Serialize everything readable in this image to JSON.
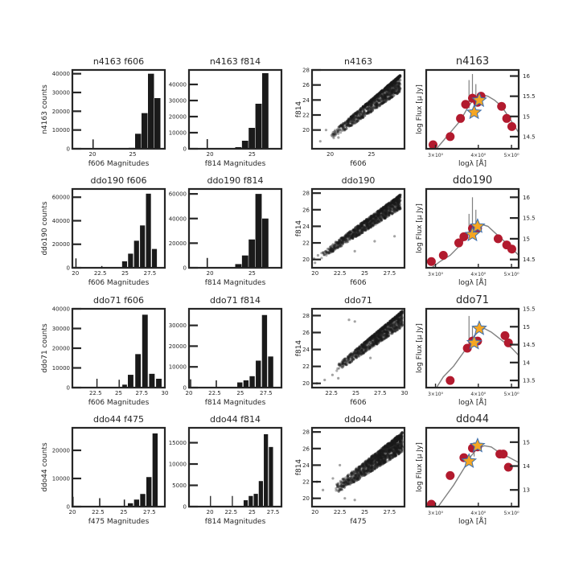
{
  "figure": {
    "background": "#ffffff",
    "frame_color": "#262626"
  },
  "colors": {
    "hist": "#1a1a1a",
    "scatter": "#1a1a1a",
    "sed_model": "#808080",
    "sed_photometry": "#b21a2e",
    "sed_star_fill": "#f5a623",
    "sed_star_edge": "#3b6fb0"
  },
  "chart_data": [
    {
      "id": "n4163_f606",
      "type": "bar",
      "title": "n4163 f606",
      "xlabel": "f606 Magnitudes",
      "ylabel": "n4163 counts",
      "xlim": [
        17.5,
        29
      ],
      "ylim": [
        0,
        42000
      ],
      "xticks": [
        20,
        25
      ],
      "yticks": [
        0,
        10000,
        20000,
        30000,
        40000
      ],
      "bins": [
        {
          "x": 20.0,
          "w": 0.15,
          "y": 5000
        },
        {
          "x": 24.5,
          "w": 0.75,
          "y": 500
        },
        {
          "x": 25.3,
          "w": 0.75,
          "y": 8000
        },
        {
          "x": 26.1,
          "w": 0.75,
          "y": 19000
        },
        {
          "x": 26.9,
          "w": 0.75,
          "y": 40000
        },
        {
          "x": 27.7,
          "w": 0.75,
          "y": 27000
        }
      ]
    },
    {
      "id": "n4163_f814",
      "type": "bar",
      "title": "n4163 f814",
      "xlabel": "f814 Magnitudes",
      "ylabel": "",
      "xlim": [
        17.5,
        28.5
      ],
      "ylim": [
        0,
        49000
      ],
      "xticks": [
        20,
        25
      ],
      "yticks": [
        0,
        10000,
        20000,
        30000,
        40000
      ],
      "bins": [
        {
          "x": 19.6,
          "w": 0.15,
          "y": 6000
        },
        {
          "x": 23.0,
          "w": 0.75,
          "y": 1000
        },
        {
          "x": 23.8,
          "w": 0.75,
          "y": 5000
        },
        {
          "x": 24.6,
          "w": 0.75,
          "y": 13000
        },
        {
          "x": 25.4,
          "w": 0.75,
          "y": 28000
        },
        {
          "x": 26.2,
          "w": 0.75,
          "y": 47000
        }
      ]
    },
    {
      "id": "n4163_cmd",
      "type": "scatter",
      "title": "n4163",
      "xlabel": "f606",
      "ylabel": "f814",
      "xlim": [
        17.8,
        29
      ],
      "ylim": [
        17.5,
        28
      ],
      "xticks": [
        20,
        25
      ],
      "yticks": [
        20,
        22,
        24,
        26,
        28
      ],
      "band": {
        "x0": 20.0,
        "x1": 28.5,
        "y0": 19.2,
        "y1": 27.1,
        "up": 0.25,
        "down": 2.0,
        "n": 1200
      },
      "outliers": [
        [
          18.8,
          18.5
        ],
        [
          19.5,
          20.0
        ],
        [
          21.0,
          19.0
        ],
        [
          22.5,
          20.6
        ],
        [
          24.0,
          22.0
        ]
      ]
    },
    {
      "id": "n4163_sed",
      "type": "line",
      "title": "n4163",
      "xlabel": "logλ [Å]",
      "ylabel": "log Flux  [µ Jy]",
      "xlim": [
        3.45,
        3.72
      ],
      "ylim": [
        14.2,
        16.15
      ],
      "logx_ticks": [
        [
          3.4771,
          "3×10⁰"
        ],
        [
          3.6021,
          "4×10⁰"
        ],
        [
          3.699,
          "5×10⁰"
        ]
      ],
      "yticks": [
        14.5,
        15.0,
        15.5,
        16.0
      ],
      "model": [
        [
          3.45,
          13.9
        ],
        [
          3.49,
          14.3
        ],
        [
          3.52,
          14.6
        ],
        [
          3.55,
          14.9
        ],
        [
          3.57,
          15.2
        ],
        [
          3.59,
          15.45
        ],
        [
          3.61,
          15.55
        ],
        [
          3.63,
          15.5
        ],
        [
          3.65,
          15.4
        ],
        [
          3.67,
          15.25
        ],
        [
          3.69,
          15.0
        ],
        [
          3.72,
          14.6
        ]
      ],
      "spikes": [
        [
          3.575,
          15.9
        ],
        [
          3.585,
          16.05
        ],
        [
          3.595,
          15.8
        ]
      ],
      "photometry": [
        [
          3.47,
          14.3
        ],
        [
          3.52,
          14.5
        ],
        [
          3.55,
          14.95
        ],
        [
          3.565,
          15.3
        ],
        [
          3.585,
          15.45
        ],
        [
          3.6,
          15.35
        ],
        [
          3.61,
          15.5
        ],
        [
          3.67,
          15.25
        ],
        [
          3.685,
          14.95
        ],
        [
          3.7,
          14.75
        ]
      ],
      "stars": [
        [
          3.59,
          15.1
        ],
        [
          3.605,
          15.4
        ]
      ]
    },
    {
      "id": "ddo190_f606",
      "type": "bar",
      "title": "ddo190 f606",
      "xlabel": "f606 Magnitudes",
      "ylabel": "ddo190 counts",
      "xlim": [
        19.7,
        29
      ],
      "ylim": [
        0,
        67000
      ],
      "xticks": [
        20.0,
        22.5,
        25.0,
        27.5
      ],
      "yticks": [
        0,
        20000,
        40000,
        60000
      ],
      "bins": [
        {
          "x": 20.0,
          "w": 0.12,
          "y": 8000
        },
        {
          "x": 22.6,
          "w": 0.12,
          "y": 1500
        },
        {
          "x": 24.7,
          "w": 0.5,
          "y": 5500
        },
        {
          "x": 25.3,
          "w": 0.5,
          "y": 12000
        },
        {
          "x": 25.9,
          "w": 0.5,
          "y": 23000
        },
        {
          "x": 26.5,
          "w": 0.5,
          "y": 36000
        },
        {
          "x": 27.1,
          "w": 0.5,
          "y": 63000
        },
        {
          "x": 27.7,
          "w": 0.5,
          "y": 16000
        }
      ]
    },
    {
      "id": "ddo190_f814",
      "type": "bar",
      "title": "ddo190 f814",
      "xlabel": "f814 Magnitudes",
      "ylabel": "",
      "xlim": [
        17.5,
        28.5
      ],
      "ylim": [
        0,
        64000
      ],
      "xticks": [
        20,
        25
      ],
      "yticks": [
        0,
        20000,
        40000,
        60000
      ],
      "bins": [
        {
          "x": 19.6,
          "w": 0.15,
          "y": 8000
        },
        {
          "x": 23.0,
          "w": 0.75,
          "y": 3000
        },
        {
          "x": 23.8,
          "w": 0.75,
          "y": 10000
        },
        {
          "x": 24.6,
          "w": 0.75,
          "y": 23000
        },
        {
          "x": 25.4,
          "w": 0.75,
          "y": 60000
        },
        {
          "x": 26.2,
          "w": 0.75,
          "y": 40000
        }
      ]
    },
    {
      "id": "ddo190_cmd",
      "type": "scatter",
      "title": "ddo190",
      "xlabel": "f606",
      "ylabel": "f814",
      "xlim": [
        19.7,
        29
      ],
      "ylim": [
        19,
        28.5
      ],
      "xticks": [
        20.0,
        22.5,
        25.0,
        27.5
      ],
      "yticks": [
        20,
        22,
        24,
        26,
        28
      ],
      "band": {
        "x0": 20.5,
        "x1": 28.6,
        "y0": 20.4,
        "y1": 27.5,
        "up": 0.35,
        "down": 1.4,
        "n": 1200
      },
      "outliers": [
        [
          19.9,
          20.1
        ],
        [
          20.0,
          19.6
        ],
        [
          20.3,
          20.5
        ],
        [
          24.0,
          21.0
        ],
        [
          26.0,
          22.2
        ],
        [
          28.0,
          22.8
        ]
      ]
    },
    {
      "id": "ddo190_sed",
      "type": "line",
      "title": "ddo190",
      "xlabel": "logλ [Å]",
      "ylabel": "log Flux  [µ Jy]",
      "xlim": [
        3.45,
        3.72
      ],
      "ylim": [
        14.3,
        16.2
      ],
      "logx_ticks": [
        [
          3.4771,
          "3×10⁰"
        ],
        [
          3.6021,
          "4×10⁰"
        ],
        [
          3.699,
          "5×10⁰"
        ]
      ],
      "yticks": [
        14.5,
        15.0,
        15.5,
        16.0
      ],
      "model": [
        [
          3.45,
          14.2
        ],
        [
          3.49,
          14.45
        ],
        [
          3.52,
          14.6
        ],
        [
          3.55,
          14.85
        ],
        [
          3.57,
          15.1
        ],
        [
          3.59,
          15.3
        ],
        [
          3.61,
          15.35
        ],
        [
          3.63,
          15.3
        ],
        [
          3.65,
          15.15
        ],
        [
          3.67,
          15.0
        ],
        [
          3.69,
          14.85
        ],
        [
          3.72,
          14.6
        ]
      ],
      "spikes": [
        [
          3.575,
          15.6
        ],
        [
          3.585,
          16.0
        ],
        [
          3.595,
          15.7
        ]
      ],
      "photometry": [
        [
          3.465,
          14.45
        ],
        [
          3.5,
          14.6
        ],
        [
          3.545,
          14.9
        ],
        [
          3.56,
          15.05
        ],
        [
          3.585,
          15.25
        ],
        [
          3.6,
          15.25
        ],
        [
          3.66,
          15.0
        ],
        [
          3.685,
          14.85
        ],
        [
          3.7,
          14.75
        ]
      ],
      "stars": [
        [
          3.585,
          15.1
        ],
        [
          3.6,
          15.3
        ]
      ]
    },
    {
      "id": "ddo71_f606",
      "type": "bar",
      "title": "ddo71 f606",
      "xlabel": "f606 Magnitudes",
      "ylabel": "ddo71 counts",
      "xlim": [
        20,
        30
      ],
      "ylim": [
        0,
        40000
      ],
      "xticks": [
        22.5,
        25.0,
        27.5,
        30.0
      ],
      "yticks": [
        0,
        10000,
        20000,
        30000,
        40000
      ],
      "bins": [
        {
          "x": 22.6,
          "w": 0.12,
          "y": 4500
        },
        {
          "x": 25.0,
          "w": 0.12,
          "y": 4000
        },
        {
          "x": 25.4,
          "w": 0.5,
          "y": 1500
        },
        {
          "x": 26.0,
          "w": 0.6,
          "y": 6500
        },
        {
          "x": 26.8,
          "w": 0.6,
          "y": 17000
        },
        {
          "x": 27.55,
          "w": 0.6,
          "y": 37000
        },
        {
          "x": 28.3,
          "w": 0.6,
          "y": 7000
        },
        {
          "x": 29.05,
          "w": 0.6,
          "y": 4500
        }
      ]
    },
    {
      "id": "ddo71_f814",
      "type": "bar",
      "title": "ddo71 f814",
      "xlabel": "f814 Magnitudes",
      "ylabel": "",
      "xlim": [
        20,
        29
      ],
      "ylim": [
        0,
        38000
      ],
      "xticks": [
        20.0,
        22.5,
        25.0,
        27.5
      ],
      "yticks": [
        0,
        10000,
        20000,
        30000
      ],
      "bins": [
        {
          "x": 20.1,
          "w": 0.12,
          "y": 4000
        },
        {
          "x": 22.6,
          "w": 0.12,
          "y": 3500
        },
        {
          "x": 24.7,
          "w": 0.5,
          "y": 2500
        },
        {
          "x": 25.3,
          "w": 0.5,
          "y": 3500
        },
        {
          "x": 25.9,
          "w": 0.5,
          "y": 5500
        },
        {
          "x": 26.5,
          "w": 0.5,
          "y": 13000
        },
        {
          "x": 27.1,
          "w": 0.5,
          "y": 35000
        },
        {
          "x": 27.7,
          "w": 0.5,
          "y": 15000
        }
      ]
    },
    {
      "id": "ddo71_cmd",
      "type": "scatter",
      "title": "ddo71",
      "xlabel": "f606",
      "ylabel": "f814",
      "xlim": [
        20.5,
        30
      ],
      "ylim": [
        19.5,
        28.8
      ],
      "xticks": [
        22.5,
        25.0,
        27.5,
        30.0
      ],
      "yticks": [
        20,
        22,
        24,
        26,
        28
      ],
      "band": {
        "x0": 23.0,
        "x1": 29.8,
        "y0": 21.8,
        "y1": 28.3,
        "up": 0.3,
        "down": 1.6,
        "n": 1100
      },
      "outliers": [
        [
          21.0,
          20.0
        ],
        [
          21.8,
          20.4
        ],
        [
          22.6,
          21.0
        ],
        [
          23.2,
          20.6
        ],
        [
          24.3,
          27.5
        ],
        [
          24.9,
          27.3
        ],
        [
          26.5,
          23.0
        ]
      ]
    },
    {
      "id": "ddo71_sed",
      "type": "line",
      "title": "ddo71",
      "xlabel": "logλ [Å]",
      "ylabel": "log Flux  [µ Jy]",
      "xlim": [
        3.45,
        3.72
      ],
      "ylim": [
        13.3,
        15.5
      ],
      "logx_ticks": [
        [
          3.4771,
          "3×10⁰"
        ],
        [
          3.6021,
          "4×10⁰"
        ],
        [
          3.699,
          "5×10⁰"
        ]
      ],
      "yticks": [
        13.5,
        14.0,
        14.5,
        15.0,
        15.5
      ],
      "model": [
        [
          3.46,
          13.0
        ],
        [
          3.5,
          13.6
        ],
        [
          3.53,
          13.9
        ],
        [
          3.56,
          14.3
        ],
        [
          3.58,
          14.6
        ],
        [
          3.6,
          14.85
        ],
        [
          3.62,
          14.95
        ],
        [
          3.64,
          14.85
        ],
        [
          3.66,
          14.7
        ],
        [
          3.68,
          14.55
        ],
        [
          3.7,
          14.4
        ],
        [
          3.72,
          14.2
        ]
      ],
      "spikes": [
        [
          3.575,
          15.3
        ],
        [
          3.585,
          15.0
        ]
      ],
      "photometry": [
        [
          3.52,
          13.5
        ],
        [
          3.57,
          14.4
        ],
        [
          3.585,
          14.6
        ],
        [
          3.6,
          14.6
        ],
        [
          3.68,
          14.75
        ],
        [
          3.69,
          14.55
        ]
      ],
      "stars": [
        [
          3.59,
          14.55
        ],
        [
          3.605,
          14.95
        ]
      ]
    },
    {
      "id": "ddo44_f475",
      "type": "bar",
      "title": "ddo44 f475",
      "xlabel": "f475 Magnitudes",
      "ylabel": "ddo44 counts",
      "xlim": [
        20,
        29
      ],
      "ylim": [
        0,
        28000
      ],
      "xticks": [
        20.0,
        22.5,
        25.0,
        27.5
      ],
      "yticks": [
        0,
        10000,
        20000
      ],
      "bins": [
        {
          "x": 20.0,
          "w": 0.12,
          "y": 3500
        },
        {
          "x": 22.6,
          "w": 0.12,
          "y": 3000
        },
        {
          "x": 25.0,
          "w": 0.12,
          "y": 2500
        },
        {
          "x": 25.4,
          "w": 0.5,
          "y": 1200
        },
        {
          "x": 26.0,
          "w": 0.5,
          "y": 2500
        },
        {
          "x": 26.6,
          "w": 0.5,
          "y": 4500
        },
        {
          "x": 27.2,
          "w": 0.5,
          "y": 10500
        },
        {
          "x": 27.8,
          "w": 0.5,
          "y": 26000
        }
      ]
    },
    {
      "id": "ddo44_f814",
      "type": "bar",
      "title": "ddo44 f814",
      "xlabel": "f814 Magnitudes",
      "ylabel": "",
      "xlim": [
        17.5,
        28.5
      ],
      "ylim": [
        0,
        18500
      ],
      "xticks": [
        20.0,
        22.5,
        25.0,
        27.5
      ],
      "yticks": [
        0,
        5000,
        10000,
        15000
      ],
      "bins": [
        {
          "x": 20.0,
          "w": 0.12,
          "y": 2500
        },
        {
          "x": 22.6,
          "w": 0.12,
          "y": 2500
        },
        {
          "x": 24.0,
          "w": 0.5,
          "y": 1500
        },
        {
          "x": 24.6,
          "w": 0.5,
          "y": 2500
        },
        {
          "x": 25.2,
          "w": 0.5,
          "y": 3000
        },
        {
          "x": 25.8,
          "w": 0.5,
          "y": 6000
        },
        {
          "x": 26.4,
          "w": 0.5,
          "y": 17000
        },
        {
          "x": 27.0,
          "w": 0.5,
          "y": 14000
        }
      ]
    },
    {
      "id": "ddo44_cmd",
      "type": "scatter",
      "title": "ddo44",
      "xlabel": "f475",
      "ylabel": "f814",
      "xlim": [
        19.7,
        29
      ],
      "ylim": [
        19,
        28.5
      ],
      "xticks": [
        20.0,
        22.5,
        25.0,
        27.5
      ],
      "yticks": [
        20,
        22,
        24,
        26,
        28
      ],
      "band": {
        "x0": 22.0,
        "x1": 28.8,
        "y0": 21.0,
        "y1": 27.4,
        "up": 0.6,
        "down": 1.8,
        "n": 1400
      },
      "outliers": [
        [
          19.8,
          20.0
        ],
        [
          20.2,
          22.0
        ],
        [
          20.8,
          21.0
        ],
        [
          21.8,
          22.4
        ],
        [
          23.0,
          20.0
        ],
        [
          24.0,
          19.8
        ],
        [
          22.5,
          24.0
        ]
      ]
    },
    {
      "id": "ddo44_sed",
      "type": "line",
      "title": "ddo44",
      "xlabel": "logλ [Å]",
      "ylabel": "log Flux  [µ Jy]",
      "xlim": [
        3.45,
        3.72
      ],
      "ylim": [
        12.3,
        15.6
      ],
      "logx_ticks": [
        [
          3.4771,
          "3×10⁰"
        ],
        [
          3.6021,
          "4×10⁰"
        ],
        [
          3.699,
          "5×10⁰"
        ]
      ],
      "yticks": [
        13,
        14,
        15
      ],
      "model": [
        [
          3.47,
          12.0
        ],
        [
          3.5,
          12.6
        ],
        [
          3.53,
          13.2
        ],
        [
          3.56,
          13.9
        ],
        [
          3.58,
          14.4
        ],
        [
          3.6,
          14.75
        ],
        [
          3.62,
          14.85
        ],
        [
          3.64,
          14.8
        ],
        [
          3.66,
          14.6
        ],
        [
          3.68,
          14.45
        ],
        [
          3.7,
          14.3
        ],
        [
          3.72,
          14.15
        ]
      ],
      "spikes": [
        [
          3.59,
          15.0
        ],
        [
          3.6,
          14.9
        ]
      ],
      "photometry": [
        [
          3.465,
          12.4
        ],
        [
          3.52,
          13.6
        ],
        [
          3.56,
          14.35
        ],
        [
          3.585,
          14.75
        ],
        [
          3.6,
          14.8
        ],
        [
          3.665,
          14.5
        ],
        [
          3.675,
          14.5
        ],
        [
          3.69,
          13.95
        ]
      ],
      "stars": [
        [
          3.575,
          14.2
        ],
        [
          3.6,
          14.85
        ]
      ]
    }
  ]
}
